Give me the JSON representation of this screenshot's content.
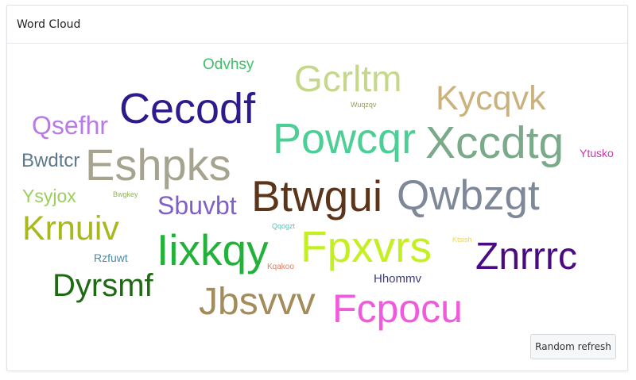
{
  "panel": {
    "title": "Word Cloud",
    "refresh_label": "Random refresh"
  },
  "words": [
    {
      "text": "Odvhsy",
      "color": "#3fc06a"
    },
    {
      "text": "Gcrltm",
      "color": "#c5d88a"
    },
    {
      "text": "Cecodf",
      "color": "#2e1a8c"
    },
    {
      "text": "Kycqvk",
      "color": "#cbb27d"
    },
    {
      "text": "Wuqzqv",
      "color": "#9a9a6a"
    },
    {
      "text": "Qsefhr",
      "color": "#b77ae6"
    },
    {
      "text": "Powcqr",
      "color": "#4ccf96"
    },
    {
      "text": "Xccdtg",
      "color": "#7aaa8a"
    },
    {
      "text": "Ytusko",
      "color": "#cc38b0"
    },
    {
      "text": "Bwdtcr",
      "color": "#5d7a8c"
    },
    {
      "text": "Eshpks",
      "color": "#a6a48e"
    },
    {
      "text": "Ysyjox",
      "color": "#9ad05a"
    },
    {
      "text": "Bwgkey",
      "color": "#8fb650"
    },
    {
      "text": "Sbuvbt",
      "color": "#8060c8"
    },
    {
      "text": "Btwgui",
      "color": "#5c341a"
    },
    {
      "text": "Qwbzgt",
      "color": "#7e8898"
    },
    {
      "text": "Krnuiv",
      "color": "#a8b81e"
    },
    {
      "text": "Qqogzt",
      "color": "#38cfb8"
    },
    {
      "text": "Iixkqy",
      "color": "#22b23a"
    },
    {
      "text": "Fpxvrs",
      "color": "#c4f022"
    },
    {
      "text": "Ktsish",
      "color": "#e8d26a"
    },
    {
      "text": "Rzfuwt",
      "color": "#4a8aa6"
    },
    {
      "text": "Znrrrc",
      "color": "#4a0a82"
    },
    {
      "text": "Kqakoo",
      "color": "#e87a5a"
    },
    {
      "text": "Dyrsmf",
      "color": "#1e6a12"
    },
    {
      "text": "Hhommv",
      "color": "#3c3c7a"
    },
    {
      "text": "Jbsvvv",
      "color": "#a48c5a"
    },
    {
      "text": "Fcpocu",
      "color": "#f05adc"
    }
  ]
}
